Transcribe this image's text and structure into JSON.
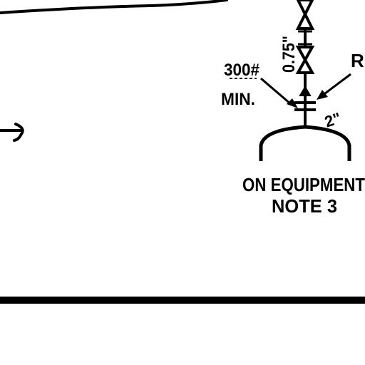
{
  "drawing": {
    "labels": {
      "pressure_rating": "300#",
      "min": "MIN.",
      "dimension_075": "0.75\"",
      "partial_label": "R",
      "size_2": "2\"",
      "on_equipment": "ON EQUIPMENT",
      "note": "NOTE 3"
    },
    "icons": {
      "valve_upper": "gate-valve-icon",
      "valve_lower": "gate-valve-icon",
      "flange": "flange-icon",
      "vessel": "vessel-head-icon"
    },
    "colors": {
      "ink": "#000000",
      "paper": "#ffffff"
    }
  }
}
